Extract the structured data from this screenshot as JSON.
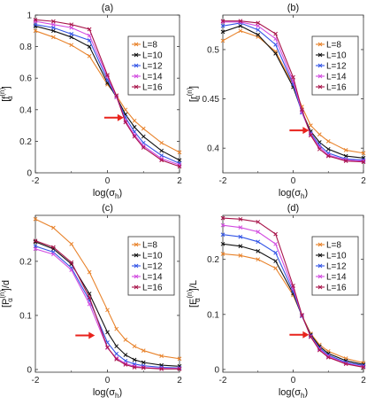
{
  "colors": {
    "L=8": "#E8822A",
    "L=10": "#111111",
    "L=12": "#3355E6",
    "L=14": "#D24BE0",
    "L=16": "#A8144A",
    "arrow": "#E8231C"
  },
  "chart_data": [
    {
      "type": "line",
      "title": "(a)",
      "xlabel": "log(σh)",
      "ylabel": "[f_α^(n)]",
      "xlim": [
        -2,
        2
      ],
      "ylim": [
        0,
        1
      ],
      "yticks": [
        "0",
        "0.2",
        "0.4",
        "0.6",
        "0.8",
        "1"
      ],
      "ytick_values": [
        0,
        0.2,
        0.4,
        0.6,
        0.8,
        1
      ],
      "xticks": [
        "-2",
        "0",
        "2"
      ],
      "xtick_values": [
        -2,
        0,
        2
      ],
      "legend_position": "top-right",
      "arrow": {
        "x": 0.5,
        "y": 0.35
      },
      "x": [
        -2,
        -1.5,
        -1,
        -0.5,
        0,
        0.25,
        0.5,
        0.75,
        1,
        1.5,
        2
      ],
      "series": [
        {
          "name": "L=8",
          "values": [
            0.9,
            0.86,
            0.81,
            0.74,
            0.56,
            0.49,
            0.4,
            0.33,
            0.28,
            0.19,
            0.13
          ]
        },
        {
          "name": "L=10",
          "values": [
            0.93,
            0.9,
            0.86,
            0.8,
            0.57,
            0.48,
            0.37,
            0.29,
            0.23,
            0.14,
            0.08
          ]
        },
        {
          "name": "L=12",
          "values": [
            0.94,
            0.92,
            0.88,
            0.84,
            0.59,
            0.48,
            0.35,
            0.26,
            0.19,
            0.11,
            0.06
          ]
        },
        {
          "name": "L=14",
          "values": [
            0.96,
            0.94,
            0.92,
            0.87,
            0.61,
            0.48,
            0.33,
            0.24,
            0.17,
            0.09,
            0.05
          ]
        },
        {
          "name": "L=16",
          "values": [
            0.97,
            0.96,
            0.94,
            0.91,
            0.62,
            0.49,
            0.32,
            0.23,
            0.16,
            0.08,
            0.04
          ]
        }
      ]
    },
    {
      "type": "line",
      "title": "(b)",
      "xlabel": "log(σh)",
      "ylabel": "[r_α^(n)]",
      "xlim": [
        -2,
        2
      ],
      "ylim": [
        0.375,
        0.535
      ],
      "yticks": [
        "0.4",
        "0.45",
        "0.5"
      ],
      "ytick_values": [
        0.4,
        0.45,
        0.5
      ],
      "xticks": [
        "-2",
        "0",
        "2"
      ],
      "xtick_values": [
        -2,
        0,
        2
      ],
      "legend_position": "top-right",
      "arrow": {
        "x": 0.5,
        "y": 0.418
      },
      "x": [
        -2,
        -1.5,
        -1,
        -0.5,
        0,
        0.25,
        0.5,
        0.75,
        1,
        1.5,
        2
      ],
      "series": [
        {
          "name": "L=8",
          "values": [
            0.509,
            0.519,
            0.513,
            0.498,
            0.464,
            0.442,
            0.423,
            0.414,
            0.407,
            0.398,
            0.395
          ]
        },
        {
          "name": "L=10",
          "values": [
            0.518,
            0.524,
            0.515,
            0.496,
            0.462,
            0.437,
            0.417,
            0.406,
            0.399,
            0.392,
            0.39
          ]
        },
        {
          "name": "L=12",
          "values": [
            0.524,
            0.527,
            0.52,
            0.505,
            0.465,
            0.436,
            0.415,
            0.403,
            0.395,
            0.389,
            0.388
          ]
        },
        {
          "name": "L=14",
          "values": [
            0.528,
            0.528,
            0.524,
            0.511,
            0.468,
            0.437,
            0.414,
            0.401,
            0.393,
            0.388,
            0.387
          ]
        },
        {
          "name": "L=16",
          "values": [
            0.529,
            0.529,
            0.527,
            0.516,
            0.472,
            0.439,
            0.413,
            0.399,
            0.392,
            0.387,
            0.386
          ]
        }
      ]
    },
    {
      "type": "line",
      "title": "(c)",
      "xlabel": "log(σh)",
      "ylabel": "[P_α^(n)]/d",
      "xlim": [
        -2,
        2
      ],
      "ylim": [
        -0.005,
        0.285
      ],
      "yticks": [
        "0",
        "0.1",
        "0.2"
      ],
      "ytick_values": [
        0,
        0.1,
        0.2
      ],
      "xticks": [
        "-2",
        "0",
        "2"
      ],
      "xtick_values": [
        -2,
        0,
        2
      ],
      "legend_position": "top-right",
      "arrow": {
        "x": -0.3,
        "y": 0.063
      },
      "x": [
        -2,
        -1.5,
        -1,
        -0.5,
        0,
        0.25,
        0.5,
        0.75,
        1,
        1.5,
        2
      ],
      "series": [
        {
          "name": "L=8",
          "values": [
            0.278,
            0.262,
            0.232,
            0.18,
            0.11,
            0.075,
            0.055,
            0.043,
            0.035,
            0.025,
            0.02
          ]
        },
        {
          "name": "L=10",
          "values": [
            0.236,
            0.223,
            0.195,
            0.14,
            0.069,
            0.043,
            0.027,
            0.018,
            0.013,
            0.008,
            0.006
          ]
        },
        {
          "name": "L=12",
          "values": [
            0.228,
            0.217,
            0.188,
            0.128,
            0.05,
            0.029,
            0.016,
            0.01,
            0.007,
            0.004,
            0.003
          ]
        },
        {
          "name": "L=14",
          "values": [
            0.223,
            0.213,
            0.184,
            0.121,
            0.04,
            0.021,
            0.011,
            0.006,
            0.004,
            0.002,
            0.002
          ]
        },
        {
          "name": "L=16",
          "values": [
            0.238,
            0.226,
            0.198,
            0.133,
            0.041,
            0.019,
            0.009,
            0.004,
            0.003,
            0.001,
            0.001
          ]
        }
      ]
    },
    {
      "type": "line",
      "title": "(d)",
      "xlabel": "log(σh)",
      "ylabel": "[E_α^(n)]/L",
      "xlim": [
        -2,
        2
      ],
      "ylim": [
        -0.005,
        0.28
      ],
      "yticks": [
        "0",
        "0.1",
        "0.2"
      ],
      "ytick_values": [
        0,
        0.1,
        0.2
      ],
      "xticks": [
        "-2",
        "0",
        "2"
      ],
      "xtick_values": [
        -2,
        0,
        2
      ],
      "legend_position": "top-right",
      "arrow": {
        "x": 0.5,
        "y": 0.063
      },
      "x": [
        -2,
        -1.5,
        -1,
        -0.5,
        0,
        0.25,
        0.5,
        0.75,
        1,
        1.5,
        2
      ],
      "series": [
        {
          "name": "L=8",
          "values": [
            0.21,
            0.207,
            0.2,
            0.184,
            0.135,
            0.098,
            0.065,
            0.045,
            0.033,
            0.02,
            0.012
          ]
        },
        {
          "name": "L=10",
          "values": [
            0.228,
            0.224,
            0.215,
            0.197,
            0.138,
            0.097,
            0.063,
            0.042,
            0.029,
            0.016,
            0.009
          ]
        },
        {
          "name": "L=12",
          "values": [
            0.245,
            0.241,
            0.232,
            0.212,
            0.142,
            0.097,
            0.061,
            0.039,
            0.026,
            0.013,
            0.007
          ]
        },
        {
          "name": "L=14",
          "values": [
            0.262,
            0.258,
            0.25,
            0.228,
            0.147,
            0.098,
            0.06,
            0.037,
            0.024,
            0.011,
            0.005
          ]
        },
        {
          "name": "L=16",
          "values": [
            0.275,
            0.273,
            0.268,
            0.246,
            0.152,
            0.099,
            0.059,
            0.035,
            0.022,
            0.01,
            0.004
          ]
        }
      ]
    }
  ]
}
